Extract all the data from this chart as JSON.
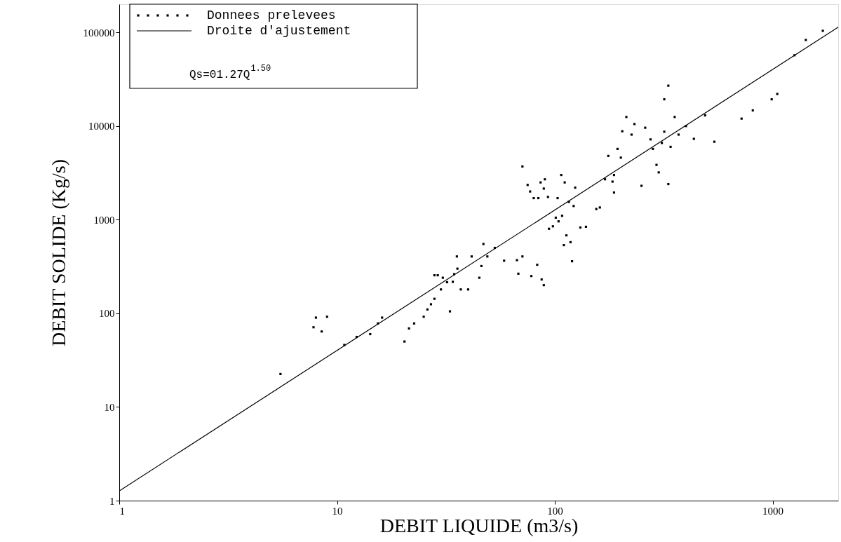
{
  "chart_data": {
    "type": "scatter",
    "xlabel": "DEBIT LIQUIDE (m3/s)",
    "ylabel": "DEBIT SOLIDE (Kg/s)",
    "log": "xy",
    "xlim": [
      1,
      2000
    ],
    "ylim": [
      1,
      200000
    ],
    "xticks": [
      1,
      10,
      100,
      1000
    ],
    "yticks": [
      1,
      10,
      100,
      1000,
      10000,
      100000
    ],
    "grid": false,
    "legend": "top left",
    "annotations": [
      "Qs=01.27Q$^{1.50}$"
    ],
    "series": [
      {
        "name": "Donnees prelevees",
        "marker": "square",
        "color": "#000000",
        "x": [
          5.5,
          7.8,
          8.0,
          8.5,
          9.0,
          10.8,
          12.3,
          14.2,
          15.4,
          16.1,
          20.4,
          21.4,
          22.6,
          25,
          26,
          27,
          28,
          28,
          29,
          30,
          30.6,
          32,
          33,
          34,
          34.5,
          35.5,
          35.7,
          37,
          40,
          41.5,
          45,
          46,
          47,
          49,
          53,
          58.5,
          67,
          68,
          71,
          71,
          75,
          77,
          78,
          80,
          83,
          84,
          86,
          87,
          89,
          89,
          90,
          93,
          94,
          98,
          101,
          103,
          104,
          108,
          107,
          110,
          111,
          113,
          116,
          118,
          120,
          122,
          124,
          131,
          139,
          155,
          161,
          170,
          176,
          184,
          187,
          194,
          187,
          201,
          204,
          213,
          225,
          232,
          250,
          260,
          275,
          282,
          293,
          300,
          310,
          318,
          318,
          332,
          332,
          340,
          355,
          370,
          400,
          435,
          490,
          540,
          720,
          811,
          990,
          1050,
          1260,
          1420,
          1700
        ],
        "values": [
          22.5,
          71,
          90,
          64,
          92,
          46,
          56,
          60,
          78,
          90,
          50,
          69,
          78,
          92,
          110,
          125,
          143,
          255,
          255,
          180,
          240,
          215,
          105,
          217,
          262,
          405,
          300,
          180,
          180,
          405,
          240,
          320,
          550,
          405,
          500,
          365,
          370,
          265,
          405,
          3700,
          2350,
          2000,
          250,
          1700,
          330,
          1700,
          2500,
          230,
          2150,
          200,
          2700,
          1750,
          800,
          850,
          1050,
          1700,
          960,
          1100,
          3000,
          535,
          2500,
          680,
          1550,
          575,
          360,
          1400,
          2200,
          825,
          840,
          1300,
          1350,
          2700,
          4800,
          2550,
          3000,
          5700,
          1950,
          4600,
          8800,
          12500,
          8100,
          10500,
          2300,
          9600,
          7200,
          5700,
          3850,
          3200,
          6600,
          8700,
          19300,
          2400,
          27000,
          6000,
          12500,
          8100,
          10000,
          7300,
          13000,
          6800,
          12000,
          14700,
          19300,
          22000,
          57000,
          83000,
          104000
        ]
      },
      {
        "name": "Droite d'ajustement",
        "type": "line",
        "color": "#000000",
        "x": [
          1,
          2000
        ],
        "values": [
          1.27,
          113600
        ]
      }
    ]
  }
}
